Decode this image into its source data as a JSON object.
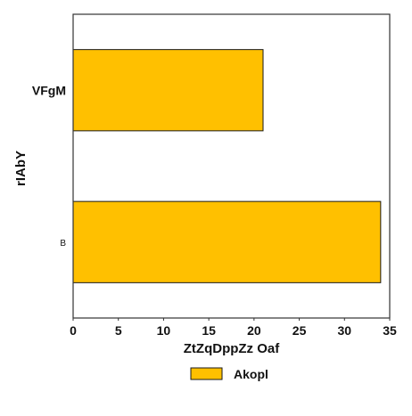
{
  "chart_data": {
    "type": "bar",
    "orientation": "horizontal",
    "categories": [
      "VFgM",
      "B"
    ],
    "series": [
      {
        "name": "Akopl",
        "values": [
          21,
          34
        ],
        "color": "#FFC000"
      }
    ],
    "xlabel": "ZtZqDppZz Oaf",
    "ylabel": "rIAbY",
    "xlim": [
      0,
      35
    ],
    "xticks": [
      0,
      5,
      10,
      15,
      20,
      25,
      30,
      35
    ],
    "grid": false,
    "legend_position": "bottom-center",
    "bar_edge_color": "#1a1a1a"
  }
}
